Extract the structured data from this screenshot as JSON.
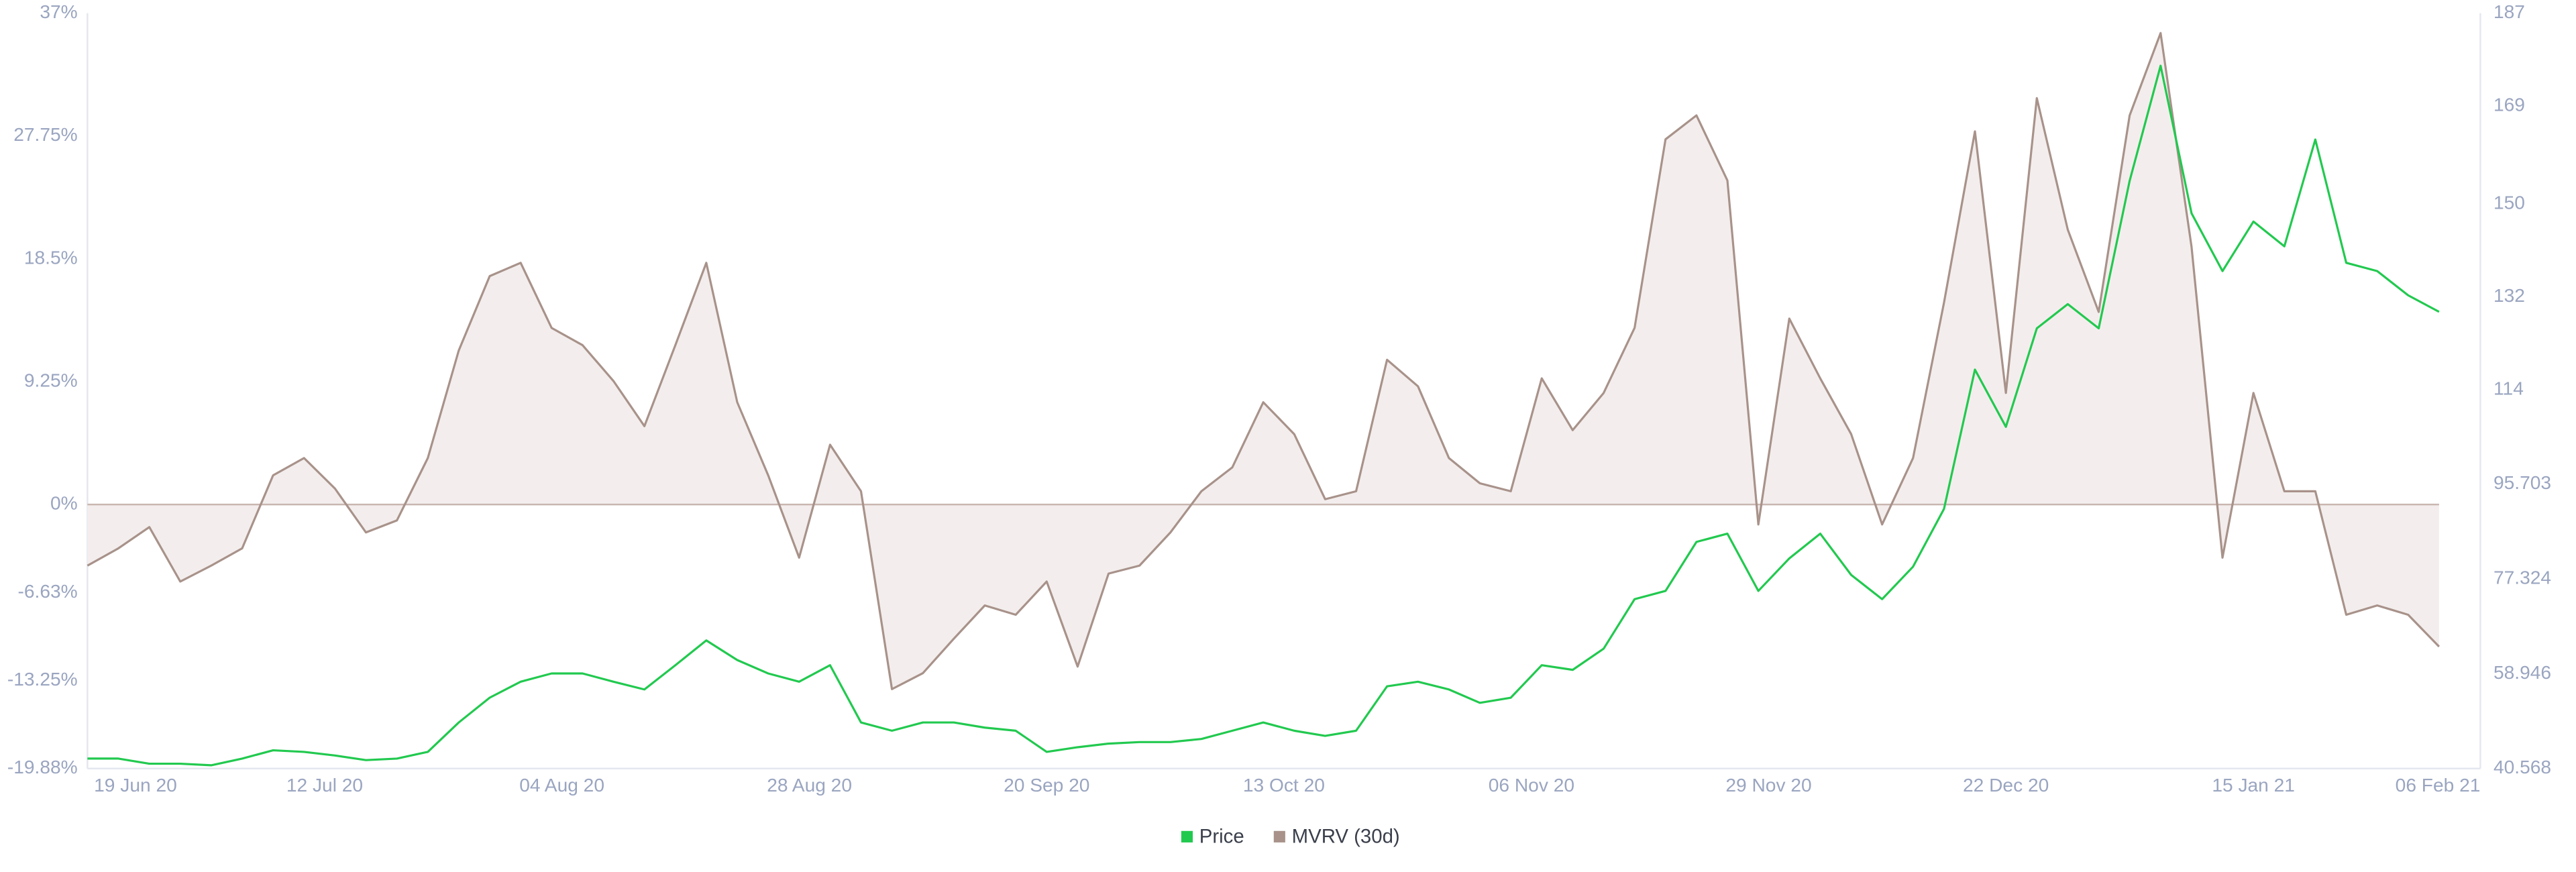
{
  "chart_data": {
    "type": "dual-axis-line-area",
    "x": [
      "19 Jun 20",
      "22 Jun 20",
      "25 Jun 20",
      "28 Jun 20",
      "01 Jul 20",
      "04 Jul 20",
      "07 Jul 20",
      "10 Jul 20",
      "13 Jul 20",
      "16 Jul 20",
      "19 Jul 20",
      "22 Jul 20",
      "25 Jul 20",
      "28 Jul 20",
      "31 Jul 20",
      "03 Aug 20",
      "06 Aug 20",
      "09 Aug 20",
      "12 Aug 20",
      "15 Aug 20",
      "18 Aug 20",
      "21 Aug 20",
      "24 Aug 20",
      "27 Aug 20",
      "30 Aug 20",
      "02 Sep 20",
      "05 Sep 20",
      "08 Sep 20",
      "11 Sep 20",
      "14 Sep 20",
      "17 Sep 20",
      "20 Sep 20",
      "23 Sep 20",
      "26 Sep 20",
      "29 Sep 20",
      "02 Oct 20",
      "05 Oct 20",
      "08 Oct 20",
      "11 Oct 20",
      "14 Oct 20",
      "17 Oct 20",
      "20 Oct 20",
      "23 Oct 20",
      "26 Oct 20",
      "29 Oct 20",
      "01 Nov 20",
      "04 Nov 20",
      "07 Nov 20",
      "10 Nov 20",
      "13 Nov 20",
      "16 Nov 20",
      "19 Nov 20",
      "22 Nov 20",
      "25 Nov 20",
      "28 Nov 20",
      "01 Dec 20",
      "04 Dec 20",
      "07 Dec 20",
      "10 Dec 20",
      "13 Dec 20",
      "16 Dec 20",
      "19 Dec 20",
      "22 Dec 20",
      "25 Dec 20",
      "28 Dec 20",
      "31 Dec 20",
      "03 Jan 21",
      "06 Jan 21",
      "09 Jan 21",
      "12 Jan 21",
      "15 Jan 21",
      "18 Jan 21",
      "21 Jan 21",
      "24 Jan 21",
      "27 Jan 21",
      "30 Jan 21",
      "02 Feb 21"
    ],
    "xlim": [
      "19 Jun 20",
      "06 Feb 21"
    ],
    "xticks": [
      "19 Jun 20",
      "12 Jul 20",
      "04 Aug 20",
      "28 Aug 20",
      "20 Sep 20",
      "13 Oct 20",
      "06 Nov 20",
      "29 Nov 20",
      "22 Dec 20",
      "15 Jan 21",
      "06 Feb 21"
    ],
    "ylim": [
      -19.88,
      37
    ],
    "yticks": [
      {
        "value": 37,
        "label": "37%"
      },
      {
        "value": 27.75,
        "label": "27.75%"
      },
      {
        "value": 18.5,
        "label": "18.5%"
      },
      {
        "value": 9.25,
        "label": "9.25%"
      },
      {
        "value": 0,
        "label": "0%"
      },
      {
        "value": -6.63,
        "label": "-6.63%"
      },
      {
        "value": -13.25,
        "label": "-13.25%"
      },
      {
        "value": -19.88,
        "label": "-19.88%"
      }
    ],
    "y2lim": [
      40.568,
      187
    ],
    "y2ticks": [
      187,
      169,
      150,
      132,
      114,
      95.703,
      77.324,
      58.946,
      40.568
    ],
    "legend": "bottom",
    "series": [
      {
        "name": "Price",
        "color": "#22c94f",
        "axis": "y2",
        "values": [
          42.5,
          42.5,
          41.5,
          41.5,
          41.2,
          42.5,
          44.1,
          43.8,
          43.1,
          42.2,
          42.5,
          43.8,
          49.5,
          54.3,
          57.4,
          59.0,
          59.0,
          57.4,
          55.9,
          60.6,
          65.4,
          61.6,
          59.0,
          57.4,
          60.6,
          49.5,
          47.9,
          49.5,
          49.5,
          48.5,
          47.9,
          43.8,
          44.7,
          45.4,
          45.7,
          45.7,
          46.3,
          47.9,
          49.5,
          47.9,
          46.9,
          47.9,
          56.5,
          57.4,
          55.9,
          53.3,
          54.3,
          60.6,
          59.7,
          63.8,
          73.4,
          75.0,
          84.5,
          86.1,
          75.0,
          81.3,
          86.1,
          78.1,
          73.4,
          79.7,
          90.9,
          117.9,
          106.8,
          125.9,
          130.6,
          125.9,
          154.5,
          176.8,
          148.2,
          137.0,
          146.6,
          141.8,
          162.5,
          138.6,
          137.0,
          132.3,
          129.1
        ]
      },
      {
        "name": "MVRV (30d)",
        "color": "#a8928a",
        "axis": "y",
        "values": [
          -4.6,
          -3.3,
          -1.7,
          -5.8,
          -4.6,
          -3.3,
          2.2,
          3.5,
          1.2,
          -2.1,
          -1.2,
          3.5,
          11.6,
          17.2,
          18.2,
          13.3,
          12.0,
          9.3,
          5.9,
          12.0,
          18.2,
          7.7,
          2.2,
          -4.0,
          4.5,
          1.0,
          -13.9,
          -12.7,
          -10.1,
          -7.6,
          -8.3,
          -5.8,
          -12.2,
          -5.2,
          -4.6,
          -2.1,
          1.0,
          2.8,
          7.7,
          5.3,
          0.4,
          1.0,
          10.9,
          8.9,
          3.5,
          1.6,
          1.0,
          9.5,
          5.6,
          8.4,
          13.3,
          27.5,
          29.3,
          24.4,
          -1.5,
          14.0,
          9.5,
          5.3,
          -1.5,
          3.5,
          15.2,
          28.1,
          8.4,
          30.6,
          20.7,
          14.5,
          29.3,
          35.5,
          19.4,
          -4.0,
          8.4,
          1.0,
          1.0,
          -8.3,
          -7.6,
          -8.3,
          -10.7
        ]
      }
    ]
  }
}
